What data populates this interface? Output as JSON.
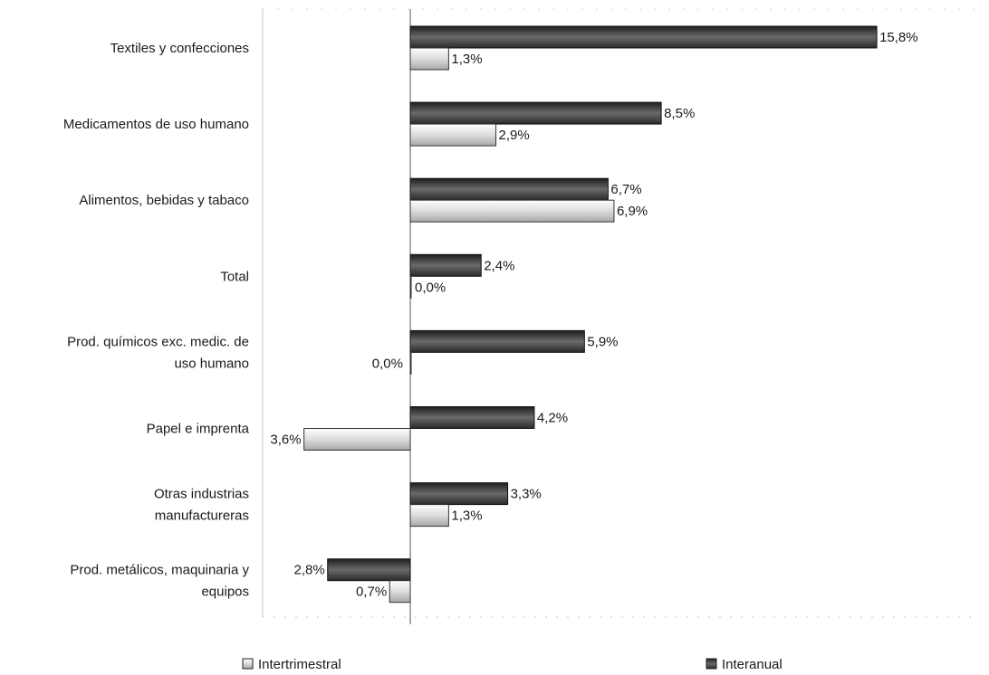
{
  "chart_data": {
    "type": "bar",
    "orientation": "horizontal",
    "categories": [
      "Textiles y confecciones",
      "Medicamentos de uso humano",
      "Alimentos, bebidas y tabaco",
      "Total",
      "Prod. químicos exc. medic. de uso humano",
      "Papel e imprenta",
      "Otras industrias manufactureras",
      "Prod. metálicos, maquinaria y equipos"
    ],
    "series": [
      {
        "name": "Interanual",
        "color": "#333333",
        "values": [
          15.8,
          8.5,
          6.7,
          2.4,
          5.9,
          4.2,
          3.3,
          -2.8
        ],
        "labels": [
          "15,8%",
          "8,5%",
          "6,7%",
          "2,4%",
          "5,9%",
          "4,2%",
          "3,3%",
          "2,8%"
        ]
      },
      {
        "name": "Intertrimestral",
        "color": "#e6e6e6",
        "values": [
          1.3,
          2.9,
          6.9,
          0.0,
          0.0,
          -3.6,
          1.3,
          -0.7
        ],
        "labels": [
          "1,3%",
          "2,9%",
          "6,9%",
          "0,0%",
          "0,0%",
          "3,6%",
          "1,3%",
          "0,7%"
        ]
      }
    ],
    "xlim": [
      -5,
      20
    ],
    "legend": {
      "position": "bottom",
      "order": [
        "Intertrimestral",
        "Interanual"
      ]
    },
    "grid": false
  }
}
